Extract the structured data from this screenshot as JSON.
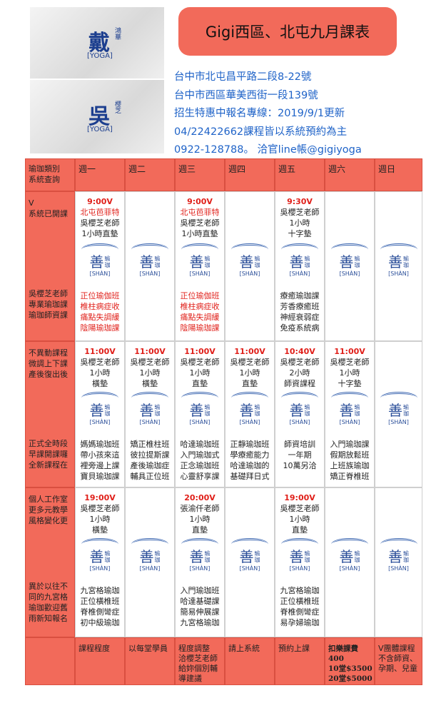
{
  "photos": [
    {
      "big": "戴",
      "small": "鴻華",
      "tag": "[YOGA]"
    },
    {
      "big": "吳",
      "small": "櫻芝",
      "tag": "[YOGA]"
    }
  ],
  "header": {
    "title": "Gigi西區、北屯九月課表",
    "lines": [
      "台中市北屯昌平路二段8-22號",
      "台中市西區華美西街一段139號",
      "招生特惠中報名專線：2019/9/1更新",
      "04/22422662課程皆以系統預約為主",
      "0922-128788。 洽官line帳@gigiyoga"
    ]
  },
  "logo": {
    "char": "善",
    "small1": "瑜",
    "small2": "珈",
    "latin": "[SHÀN]"
  },
  "table": {
    "corner": [
      "瑜珈類別",
      "系統查詢"
    ],
    "days": [
      "週一",
      "週二",
      "週三",
      "週四",
      "週五",
      "週六",
      "週日"
    ],
    "rows": [
      {
        "side_top": [
          "V",
          "系統已開課"
        ],
        "side_bottom": [
          "吳櫻芝老師",
          "專業瑜珈課",
          "瑜珈師資課"
        ],
        "cells": [
          {
            "top": [
              "9:00V",
              "北屯芭菲特",
              "吳櫻芝老師",
              "1小時直墊"
            ],
            "bottom": [
              "正位瑜伽班",
              "椎柱病症收",
              "痛點失調緩",
              "陰陽瑜珈課"
            ]
          },
          {
            "top": [],
            "bottom": []
          },
          {
            "top": [
              "9:00V",
              "北屯芭菲特",
              "吳櫻芝老師",
              "1小時直墊"
            ],
            "bottom": [
              "正位瑜伽班",
              "椎柱病症收",
              "痛點失調緩",
              "陰陽瑜珈課"
            ]
          },
          {
            "top": [],
            "bottom": []
          },
          {
            "top": [
              "9:30V",
              "吳櫻芝老師",
              "1小時",
              "十字墊"
            ],
            "bottom": [
              "療癒瑜珈課",
              "芳香療癒班",
              "神經衰弱症",
              "免疫系統病"
            ]
          },
          {
            "top": [],
            "bottom": []
          },
          {
            "top": [],
            "bottom": []
          }
        ]
      },
      {
        "side_top": [
          "不異動課程",
          "微調上下課",
          "產後復出後"
        ],
        "side_bottom": [
          "正式全時段",
          "早課開課囉",
          "全新課程在"
        ],
        "cells": [
          {
            "top": [
              "11:00V",
              "吳櫻芝老師",
              "1小時",
              "橫墊"
            ],
            "bottom": [
              "媽媽瑜珈班",
              "帶小孩來這",
              "裡旁邊上課",
              "寶貝瑜珈課"
            ]
          },
          {
            "top": [
              "11:00V",
              "吳櫻芝老師",
              "1小時",
              "橫墊"
            ],
            "bottom": [
              "矯正椎柱班",
              "彼拉提斯課",
              "產後瑜珈症",
              "輔具正位班"
            ]
          },
          {
            "top": [
              "11:00V",
              "吳櫻芝老師",
              "1小時",
              "直墊"
            ],
            "bottom": [
              "哈達瑜珈班",
              "入門瑜珈式",
              "正念瑜珈班",
              "心靈舒享課"
            ]
          },
          {
            "top": [
              "11:00V",
              "吳櫻芝老師",
              "1小時",
              "直墊"
            ],
            "bottom": [
              "正靜瑜珈班",
              "學療癒能力",
              "哈達瑜珈的",
              "基礎拜日式"
            ]
          },
          {
            "top": [
              "10:40V",
              "吳櫻芝老師",
              "2小時",
              "師資課程"
            ],
            "bottom": [
              "師資培訓",
              "一年期",
              "10萬另洽"
            ]
          },
          {
            "top": [
              "11:00V",
              "吳櫻芝老師",
              "1小時",
              "十字墊"
            ],
            "bottom": [
              "入門瑜珈課",
              "假期放鬆班",
              "上班族瑜珈",
              "矯正脊椎班"
            ]
          },
          {
            "top": [],
            "bottom": []
          }
        ]
      },
      {
        "side_top": [
          "個人工作室",
          "更多元教學",
          "風格變化更"
        ],
        "side_bottom": [
          "異於以往不",
          "同的九宮格",
          "瑜珈歡迎舊",
          "雨新知報名"
        ],
        "cells": [
          {
            "top": [
              "19:00V",
              "吳櫻芝老師",
              "1小時",
              "橫墊"
            ],
            "bottom": [
              "九宮格瑜珈",
              "正位橫椎班",
              "脊椎側彎症",
              "初中級瑜珈"
            ]
          },
          {
            "top": [],
            "bottom": []
          },
          {
            "top": [
              "20:00V",
              "張渝仟老師",
              "1小時",
              "直墊"
            ],
            "bottom": [
              "入門瑜珈班",
              "哈達基礎課",
              "簡易伸展課",
              "九宮格瑜珈"
            ]
          },
          {
            "top": [],
            "bottom": []
          },
          {
            "top": [
              "19:00V",
              "吳櫻芝老師",
              "1小時",
              "直墊"
            ],
            "bottom": [
              "九宮格瑜珈",
              "正位橫椎班",
              "脊椎側彎症",
              "易孕婦瑜珈"
            ]
          },
          {
            "top": [],
            "bottom": []
          },
          {
            "top": [],
            "bottom": []
          }
        ]
      }
    ],
    "footer": [
      [
        "課程程度"
      ],
      [
        "以每堂學員"
      ],
      [
        "程度調整",
        "洽櫻芝老師",
        "給妳個別輔",
        "導建議"
      ],
      [
        "請上系統"
      ],
      [
        "預約上課"
      ],
      [
        "扣樂課費",
        "400",
        "10堂$3500",
        "20堂$5000"
      ],
      [
        "V團體課程",
        "不含師資、",
        "孕期、兒童"
      ]
    ]
  }
}
